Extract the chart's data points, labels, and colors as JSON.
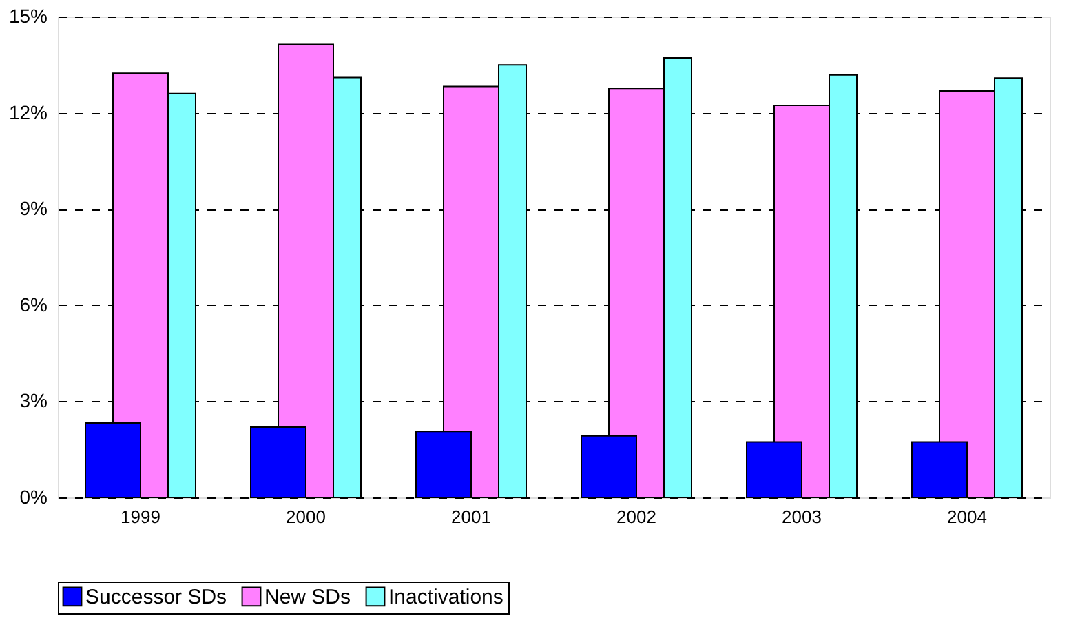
{
  "chart_data": {
    "type": "bar",
    "categories": [
      "1999",
      "2000",
      "2001",
      "2002",
      "2003",
      "2004"
    ],
    "series": [
      {
        "name": "Successor SDs",
        "color": "#0000ff",
        "values": [
          2.32,
          2.19,
          2.06,
          1.92,
          1.73,
          1.73
        ]
      },
      {
        "name": "New SDs",
        "color": "#ff80ff",
        "values": [
          13.23,
          14.13,
          12.82,
          12.76,
          12.23,
          12.68
        ]
      },
      {
        "name": "Inactivations",
        "color": "#80ffff",
        "values": [
          12.6,
          13.1,
          13.49,
          13.71,
          13.18,
          13.08
        ]
      }
    ],
    "ylim": [
      0,
      15
    ],
    "yticks": [
      {
        "value": 0,
        "label": "0%"
      },
      {
        "value": 3,
        "label": "3%"
      },
      {
        "value": 6,
        "label": "6%"
      },
      {
        "value": 9,
        "label": "9%"
      },
      {
        "value": 12,
        "label": "12%"
      },
      {
        "value": 15,
        "label": "15%"
      }
    ],
    "grid": "y",
    "legend": "bottom"
  }
}
